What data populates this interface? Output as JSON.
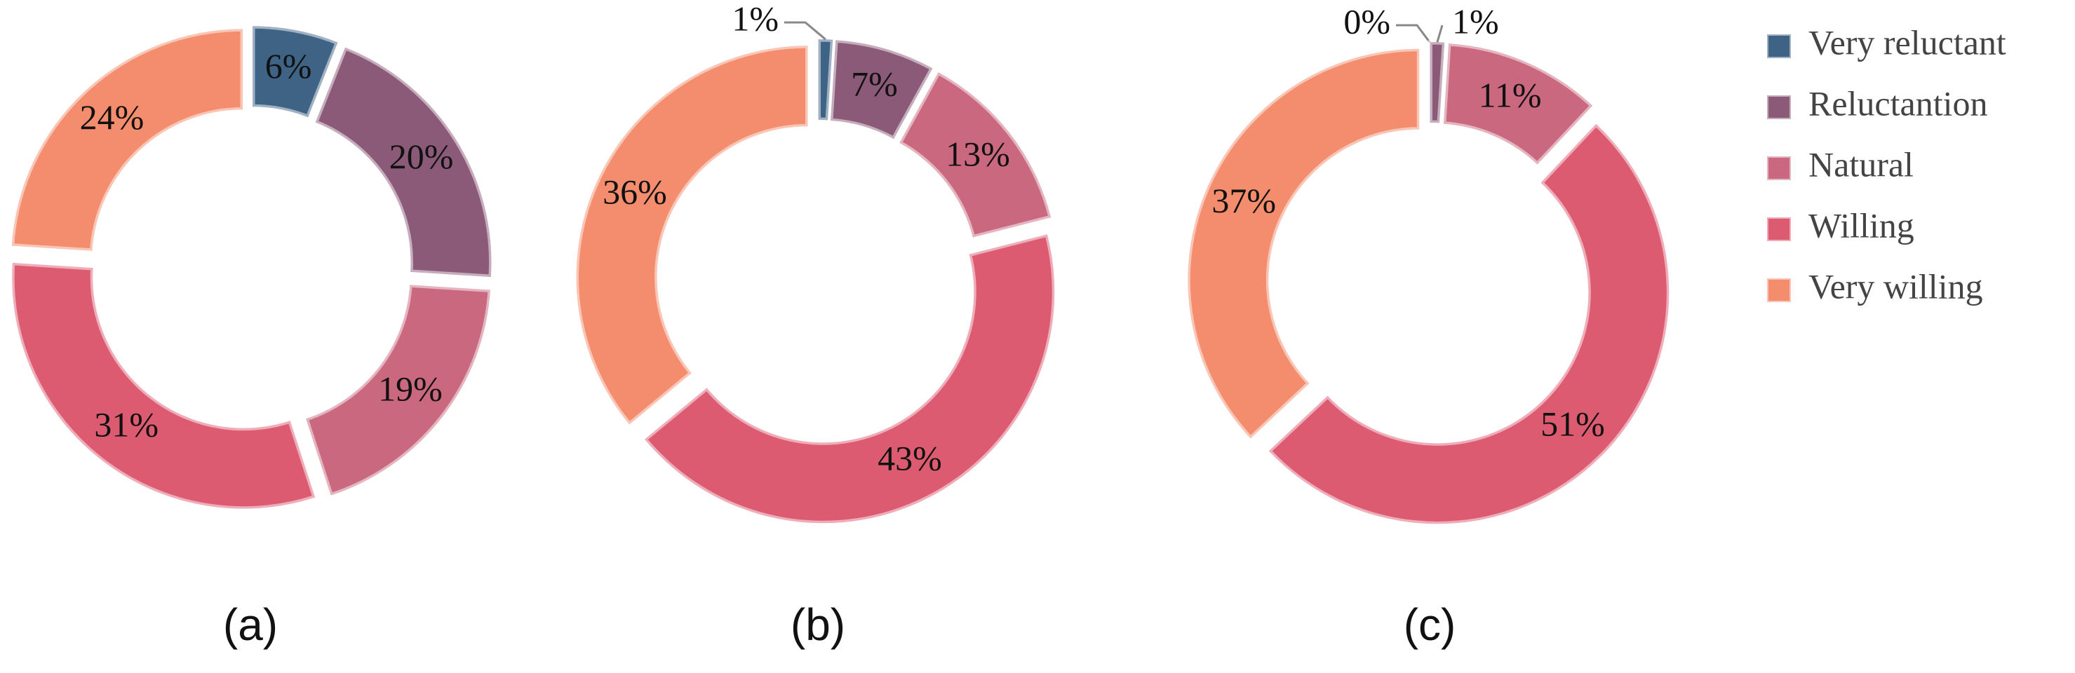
{
  "chart_data": {
    "type": "pie",
    "donut": true,
    "categories": [
      "Very reluctant",
      "Reluctantion",
      "Natural",
      "Willing",
      "Very willing"
    ],
    "colors": [
      "#3e6385",
      "#8c5a79",
      "#c9687f",
      "#dc5b70",
      "#f38d6d"
    ],
    "series": [
      {
        "name": "(a)",
        "values": [
          6,
          20,
          19,
          31,
          24
        ],
        "value_labels": [
          "6%",
          "20%",
          "19%",
          "31%",
          "24%"
        ]
      },
      {
        "name": "(b)",
        "values": [
          1,
          7,
          13,
          43,
          36
        ],
        "value_labels": [
          "1%",
          "7%",
          "13%",
          "43%",
          "36%"
        ]
      },
      {
        "name": "(c)",
        "values": [
          0,
          1,
          11,
          51,
          37
        ],
        "value_labels": [
          "0%",
          "1%",
          "11%",
          "51%",
          "37%"
        ]
      }
    ],
    "legend": "right"
  }
}
